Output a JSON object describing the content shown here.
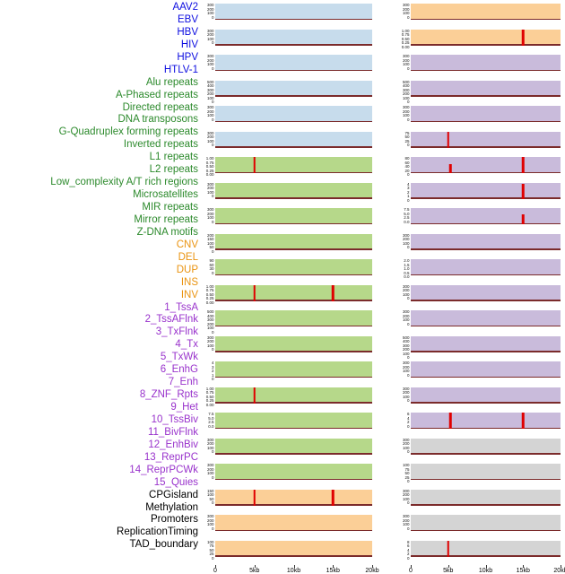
{
  "category_colors": {
    "label": {
      "virus": "#0e0ee0",
      "repeat": "#2c8a2c",
      "sv": "#ea9412",
      "chromhmm": "#9933cc",
      "other": "#000000"
    },
    "panel": {
      "virus": "#c7dcec",
      "repeat": "#b6d88a",
      "sv": "#fbcf97",
      "chromhmm": "#c9bbdb",
      "other": "#d4d4d4"
    },
    "spike": "#e00000",
    "baseline": "#7b2b2b"
  },
  "chart_data": {
    "type": "line",
    "subtype": "multi-panel-genomic-feature-tracks",
    "x_range_kb": [
      0,
      20
    ],
    "x_ticks": [
      "0",
      "5kb",
      "10kb",
      "15kb",
      "20kb"
    ],
    "columns": [
      {
        "name": "left",
        "features": [
          {
            "label": "AAV2",
            "category": "virus",
            "y_ticks": [
              "300",
              "200",
              "100",
              "0"
            ],
            "spikes_kb": []
          },
          {
            "label": "EBV",
            "category": "virus",
            "y_ticks": [
              "300",
              "200",
              "100",
              "0"
            ],
            "spikes_kb": []
          },
          {
            "label": "HBV",
            "category": "virus",
            "y_ticks": [
              "300",
              "200",
              "100",
              "0"
            ],
            "spikes_kb": []
          },
          {
            "label": "HIV",
            "category": "virus",
            "y_ticks": [
              "500",
              "400",
              "300",
              "200",
              "100",
              "0"
            ],
            "spikes_kb": []
          },
          {
            "label": "HPV",
            "category": "virus",
            "y_ticks": [
              "300",
              "200",
              "100",
              "0"
            ],
            "spikes_kb": []
          },
          {
            "label": "HTLV-1",
            "category": "virus",
            "y_ticks": [
              "300",
              "200",
              "100",
              "0"
            ],
            "spikes_kb": []
          },
          {
            "label": "Alu repeats",
            "category": "repeat",
            "y_ticks": [
              "1.00",
              "0.75",
              "0.50",
              "0.25",
              "0.00"
            ],
            "spikes_kb": [
              {
                "kb": 5,
                "h": 1
              }
            ]
          },
          {
            "label": "A-Phased repeats",
            "category": "repeat",
            "y_ticks": [
              "300",
              "200",
              "100",
              "0"
            ],
            "spikes_kb": []
          },
          {
            "label": "Directed repeats",
            "category": "repeat",
            "y_ticks": [
              "300",
              "200",
              "100",
              "0"
            ],
            "spikes_kb": []
          },
          {
            "label": "DNA transposons",
            "category": "repeat",
            "y_ticks": [
              "200",
              "150",
              "100",
              "50",
              "0"
            ],
            "spikes_kb": []
          },
          {
            "label": "G-Quadruplex forming repeats",
            "category": "repeat",
            "y_ticks": [
              "90",
              "60",
              "30",
              "0"
            ],
            "spikes_kb": []
          },
          {
            "label": "Inverted repeats",
            "category": "repeat",
            "y_ticks": [
              "1.00",
              "0.75",
              "0.50",
              "0.25",
              "0.00"
            ],
            "spikes_kb": [
              {
                "kb": 5,
                "h": 1
              },
              {
                "kb": 15,
                "h": 1
              }
            ]
          },
          {
            "label": "L1 repeats",
            "category": "repeat",
            "y_ticks": [
              "500",
              "400",
              "300",
              "200",
              "100",
              "0"
            ],
            "spikes_kb": []
          },
          {
            "label": "L2 repeats",
            "category": "repeat",
            "y_ticks": [
              "300",
              "200",
              "100",
              "0"
            ],
            "spikes_kb": []
          },
          {
            "label": "Low_complexity A/T rich regions",
            "category": "repeat",
            "y_ticks": [
              "4",
              "3",
              "2",
              "1",
              "0"
            ],
            "spikes_kb": []
          },
          {
            "label": "Microsatellites",
            "category": "repeat",
            "y_ticks": [
              "1.00",
              "0.75",
              "0.50",
              "0.25",
              "0.00"
            ],
            "spikes_kb": [
              {
                "kb": 5,
                "h": 1
              }
            ]
          },
          {
            "label": "MIR repeats",
            "category": "repeat",
            "y_ticks": [
              "7.5",
              "5.0",
              "2.5",
              "0.0"
            ],
            "spikes_kb": []
          },
          {
            "label": "Mirror repeats",
            "category": "repeat",
            "y_ticks": [
              "300",
              "200",
              "100",
              "0"
            ],
            "spikes_kb": []
          },
          {
            "label": "Z-DNA motifs",
            "category": "repeat",
            "y_ticks": [
              "300",
              "200",
              "100",
              "0"
            ],
            "spikes_kb": []
          },
          {
            "label": "CNV",
            "category": "sv",
            "y_ticks": [
              "150",
              "100",
              "50",
              "0"
            ],
            "spikes_kb": [
              {
                "kb": 5,
                "h": 1
              },
              {
                "kb": 15,
                "h": 1
              }
            ]
          },
          {
            "label": "DEL",
            "category": "sv",
            "y_ticks": [
              "300",
              "200",
              "100",
              "0"
            ],
            "spikes_kb": []
          },
          {
            "label": "DUP",
            "category": "sv",
            "y_ticks": [
              "100",
              "75",
              "50",
              "25",
              "0"
            ],
            "spikes_kb": []
          }
        ]
      },
      {
        "name": "right",
        "features": [
          {
            "label": "INS",
            "category": "sv",
            "y_ticks": [
              "300",
              "200",
              "100",
              "0"
            ],
            "spikes_kb": []
          },
          {
            "label": "INV",
            "category": "sv",
            "y_ticks": [
              "1.00",
              "0.75",
              "0.50",
              "0.25",
              "0.00"
            ],
            "spikes_kb": [
              {
                "kb": 15,
                "h": 1
              }
            ]
          },
          {
            "label": "1_TssA",
            "category": "chromhmm",
            "y_ticks": [
              "300",
              "200",
              "100",
              "0"
            ],
            "spikes_kb": []
          },
          {
            "label": "2_TssAFlnk",
            "category": "chromhmm",
            "y_ticks": [
              "500",
              "400",
              "300",
              "200",
              "100",
              "0"
            ],
            "spikes_kb": []
          },
          {
            "label": "3_TxFlnk",
            "category": "chromhmm",
            "y_ticks": [
              "300",
              "200",
              "100",
              "0"
            ],
            "spikes_kb": []
          },
          {
            "label": "4_Tx",
            "category": "chromhmm",
            "y_ticks": [
              "75",
              "50",
              "25",
              "0"
            ],
            "spikes_kb": [
              {
                "kb": 5,
                "h": 1
              }
            ]
          },
          {
            "label": "5_TxWk",
            "category": "chromhmm",
            "y_ticks": [
              "80",
              "60",
              "40",
              "20",
              "0"
            ],
            "spikes_kb": [
              {
                "kb": 5.3,
                "h": 0.55
              },
              {
                "kb": 15,
                "h": 1
              }
            ]
          },
          {
            "label": "6_EnhG",
            "category": "chromhmm",
            "y_ticks": [
              "4",
              "3",
              "2",
              "1",
              "0"
            ],
            "spikes_kb": [
              {
                "kb": 15,
                "h": 0.9
              }
            ]
          },
          {
            "label": "7_Enh",
            "category": "chromhmm",
            "y_ticks": [
              "7.5",
              "5.0",
              "2.5",
              "0.0"
            ],
            "spikes_kb": [
              {
                "kb": 15,
                "h": 0.6
              }
            ]
          },
          {
            "label": "8_ZNF_Rpts",
            "category": "chromhmm",
            "y_ticks": [
              "300",
              "200",
              "100",
              "0"
            ],
            "spikes_kb": []
          },
          {
            "label": "9_Het",
            "category": "chromhmm",
            "y_ticks": [
              "2.0",
              "1.5",
              "1.0",
              "0.5",
              "0.0"
            ],
            "spikes_kb": []
          },
          {
            "label": "10_TssBiv",
            "category": "chromhmm",
            "y_ticks": [
              "300",
              "200",
              "100",
              "0"
            ],
            "spikes_kb": []
          },
          {
            "label": "11_BivFlnk",
            "category": "chromhmm",
            "y_ticks": [
              "300",
              "200",
              "100",
              "0"
            ],
            "spikes_kb": []
          },
          {
            "label": "12_EnhBiv",
            "category": "chromhmm",
            "y_ticks": [
              "500",
              "400",
              "300",
              "200",
              "100",
              "0"
            ],
            "spikes_kb": []
          },
          {
            "label": "13_ReprPC",
            "category": "chromhmm",
            "y_ticks": [
              "300",
              "200",
              "100",
              "0"
            ],
            "spikes_kb": []
          },
          {
            "label": "14_ReprPCWk",
            "category": "chromhmm",
            "y_ticks": [
              "300",
              "200",
              "100",
              "0"
            ],
            "spikes_kb": []
          },
          {
            "label": "15_Quies",
            "category": "chromhmm",
            "y_ticks": [
              "6",
              "4",
              "2",
              "0"
            ],
            "spikes_kb": [
              {
                "kb": 5.3,
                "h": 1
              },
              {
                "kb": 15,
                "h": 1
              }
            ]
          },
          {
            "label": "CPGisland",
            "category": "other",
            "y_ticks": [
              "300",
              "200",
              "100",
              "0"
            ],
            "spikes_kb": []
          },
          {
            "label": "Methylation",
            "category": "other",
            "y_ticks": [
              "100",
              "75",
              "50",
              "25",
              "0"
            ],
            "spikes_kb": []
          },
          {
            "label": "Promoters",
            "category": "other",
            "y_ticks": [
              "300",
              "200",
              "100",
              "0"
            ],
            "spikes_kb": []
          },
          {
            "label": "ReplicationTiming",
            "category": "other",
            "y_ticks": [
              "300",
              "200",
              "100",
              "0"
            ],
            "spikes_kb": []
          },
          {
            "label": "TAD_boundary",
            "category": "other",
            "y_ticks": [
              "8",
              "6",
              "4",
              "2",
              "0"
            ],
            "spikes_kb": [
              {
                "kb": 5,
                "h": 1
              }
            ]
          }
        ]
      }
    ]
  }
}
